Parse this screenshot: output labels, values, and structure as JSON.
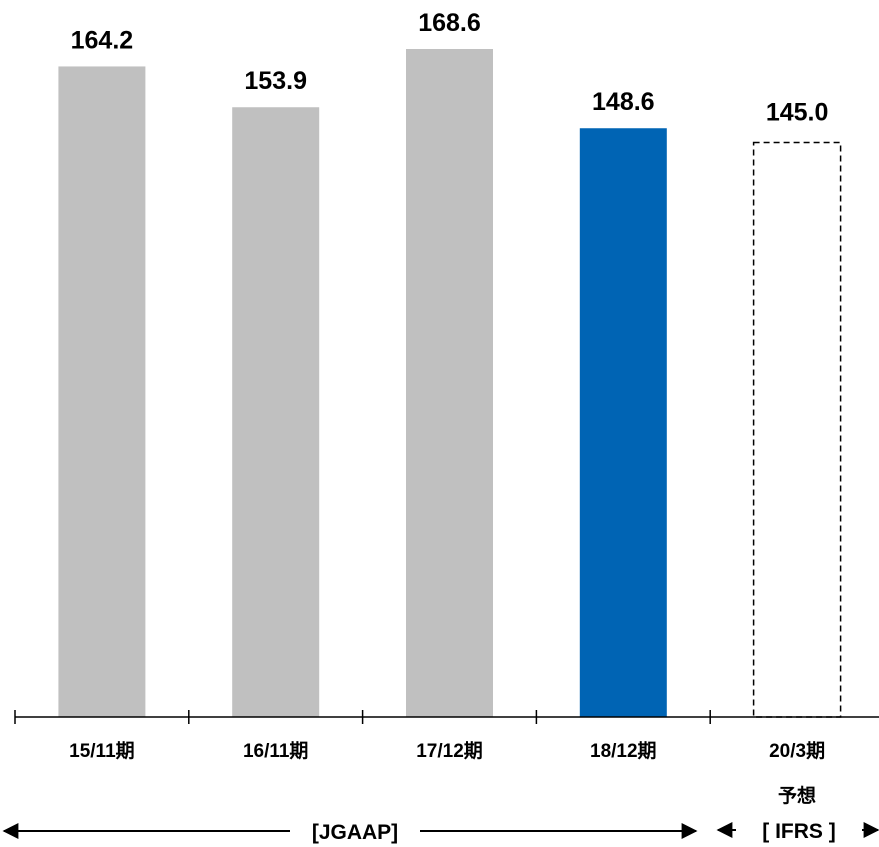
{
  "chart_data": {
    "type": "bar",
    "categories": [
      "15/11期",
      "16/11期",
      "17/12期",
      "18/12期",
      "20/3期"
    ],
    "values": [
      164.2,
      153.9,
      168.6,
      148.6,
      145.0
    ],
    "value_labels": [
      "164.2",
      "153.9",
      "168.6",
      "148.6",
      "145.0"
    ],
    "bar_styles": [
      "solid",
      "solid",
      "solid",
      "solid",
      "dashed-outline"
    ],
    "bar_colors": [
      "#c0c0c0",
      "#c0c0c0",
      "#c0c0c0",
      "#0064b4",
      "#ffffff"
    ],
    "forecast_label": "予想",
    "title": "",
    "xlabel": "",
    "ylabel": "",
    "ylim": [
      0,
      168.6
    ],
    "grid": false,
    "legend": null
  },
  "accounting": {
    "jgaap_label": "[JGAAP]",
    "ifrs_label": "[ IFRS ]"
  },
  "colors": {
    "axis": "#000000",
    "text": "#000000",
    "forecast_outline": "#000000"
  }
}
